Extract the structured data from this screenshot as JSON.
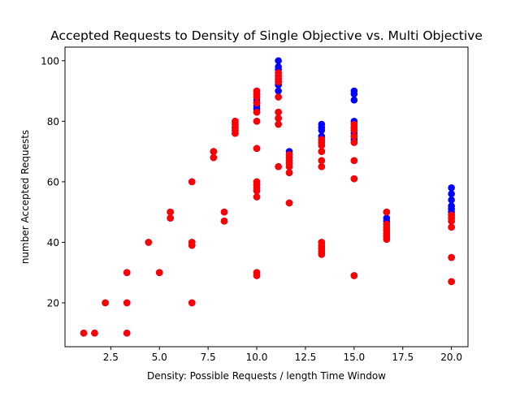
{
  "chart_data": {
    "type": "scatter",
    "title": "Accepted Requests to Density of Single Objective vs. Multi Objective",
    "xlabel": "Density: Possible Requests / length Time Window",
    "ylabel": "number Accepted Requests",
    "xlim": [
      0.15,
      20.85
    ],
    "ylim": [
      5.5,
      104.5
    ],
    "xticks": [
      2.5,
      5.0,
      7.5,
      10.0,
      12.5,
      15.0,
      17.5,
      20.0
    ],
    "xtick_labels": [
      "2.5",
      "5.0",
      "7.5",
      "10.0",
      "12.5",
      "15.0",
      "17.5",
      "20.0"
    ],
    "yticks": [
      20,
      40,
      60,
      80,
      100
    ],
    "ytick_labels": [
      "20",
      "40",
      "60",
      "80",
      "100"
    ],
    "grid": false,
    "legend": "none",
    "series": [
      {
        "color": "#0000ff",
        "points": [
          [
            1.11,
            10
          ],
          [
            1.67,
            10
          ],
          [
            2.22,
            20
          ],
          [
            3.33,
            10
          ],
          [
            3.33,
            20
          ],
          [
            3.33,
            30
          ],
          [
            4.44,
            40
          ],
          [
            5.0,
            30
          ],
          [
            5.56,
            48
          ],
          [
            5.56,
            50
          ],
          [
            6.67,
            20
          ],
          [
            6.67,
            39
          ],
          [
            6.67,
            40
          ],
          [
            6.67,
            60
          ],
          [
            7.78,
            68
          ],
          [
            7.78,
            70
          ],
          [
            8.33,
            47
          ],
          [
            8.33,
            50
          ],
          [
            8.89,
            76
          ],
          [
            8.89,
            77
          ],
          [
            8.89,
            78
          ],
          [
            8.89,
            79
          ],
          [
            8.89,
            80
          ],
          [
            10.0,
            29
          ],
          [
            10.0,
            30
          ],
          [
            10.0,
            55
          ],
          [
            10.0,
            57
          ],
          [
            10.0,
            58
          ],
          [
            10.0,
            59
          ],
          [
            10.0,
            60
          ],
          [
            10.0,
            71
          ],
          [
            10.0,
            80
          ],
          [
            10.0,
            83
          ],
          [
            10.0,
            84
          ],
          [
            10.0,
            85
          ],
          [
            10.0,
            86
          ],
          [
            10.0,
            87
          ],
          [
            10.0,
            88
          ],
          [
            10.0,
            89
          ],
          [
            10.0,
            90
          ],
          [
            11.11,
            65
          ],
          [
            11.11,
            79
          ],
          [
            11.11,
            81
          ],
          [
            11.11,
            83
          ],
          [
            11.11,
            88
          ],
          [
            11.11,
            90
          ],
          [
            11.11,
            92
          ],
          [
            11.11,
            93
          ],
          [
            11.11,
            94
          ],
          [
            11.11,
            95
          ],
          [
            11.11,
            96
          ],
          [
            11.11,
            97
          ],
          [
            11.11,
            98
          ],
          [
            11.11,
            100
          ],
          [
            11.67,
            53
          ],
          [
            11.67,
            63
          ],
          [
            11.67,
            65
          ],
          [
            11.67,
            66
          ],
          [
            11.67,
            67
          ],
          [
            11.67,
            68
          ],
          [
            11.67,
            69
          ],
          [
            11.67,
            70
          ],
          [
            13.33,
            36
          ],
          [
            13.33,
            37
          ],
          [
            13.33,
            38
          ],
          [
            13.33,
            39
          ],
          [
            13.33,
            40
          ],
          [
            13.33,
            65
          ],
          [
            13.33,
            67
          ],
          [
            13.33,
            70
          ],
          [
            13.33,
            72
          ],
          [
            13.33,
            73
          ],
          [
            13.33,
            74
          ],
          [
            13.33,
            75
          ],
          [
            13.33,
            77
          ],
          [
            13.33,
            78
          ],
          [
            13.33,
            79
          ],
          [
            15.0,
            29
          ],
          [
            15.0,
            61
          ],
          [
            15.0,
            67
          ],
          [
            15.0,
            73
          ],
          [
            15.0,
            74
          ],
          [
            15.0,
            75
          ],
          [
            15.0,
            76
          ],
          [
            15.0,
            77
          ],
          [
            15.0,
            78
          ],
          [
            15.0,
            79
          ],
          [
            15.0,
            80
          ],
          [
            15.0,
            87
          ],
          [
            15.0,
            89
          ],
          [
            15.0,
            90
          ],
          [
            16.67,
            41
          ],
          [
            16.67,
            42
          ],
          [
            16.67,
            43
          ],
          [
            16.67,
            44
          ],
          [
            16.67,
            45
          ],
          [
            16.67,
            46
          ],
          [
            16.67,
            47
          ],
          [
            16.67,
            48
          ],
          [
            16.67,
            50
          ],
          [
            20.0,
            27
          ],
          [
            20.0,
            35
          ],
          [
            20.0,
            45
          ],
          [
            20.0,
            47
          ],
          [
            20.0,
            48
          ],
          [
            20.0,
            49
          ],
          [
            20.0,
            50
          ],
          [
            20.0,
            51
          ],
          [
            20.0,
            52
          ],
          [
            20.0,
            54
          ],
          [
            20.0,
            56
          ],
          [
            20.0,
            58
          ]
        ]
      },
      {
        "color": "#ff0000",
        "points": [
          [
            1.11,
            10
          ],
          [
            1.67,
            10
          ],
          [
            2.22,
            20
          ],
          [
            3.33,
            10
          ],
          [
            3.33,
            20
          ],
          [
            3.33,
            30
          ],
          [
            4.44,
            40
          ],
          [
            5.0,
            30
          ],
          [
            5.56,
            48
          ],
          [
            5.56,
            50
          ],
          [
            6.67,
            20
          ],
          [
            6.67,
            39
          ],
          [
            6.67,
            40
          ],
          [
            6.67,
            60
          ],
          [
            7.78,
            68
          ],
          [
            7.78,
            70
          ],
          [
            8.33,
            47
          ],
          [
            8.33,
            50
          ],
          [
            8.89,
            76
          ],
          [
            8.89,
            77
          ],
          [
            8.89,
            78
          ],
          [
            8.89,
            79
          ],
          [
            8.89,
            80
          ],
          [
            10.0,
            29
          ],
          [
            10.0,
            30
          ],
          [
            10.0,
            55
          ],
          [
            10.0,
            57
          ],
          [
            10.0,
            58
          ],
          [
            10.0,
            59
          ],
          [
            10.0,
            60
          ],
          [
            10.0,
            71
          ],
          [
            10.0,
            80
          ],
          [
            10.0,
            83
          ],
          [
            10.0,
            86
          ],
          [
            10.0,
            88
          ],
          [
            10.0,
            89
          ],
          [
            10.0,
            90
          ],
          [
            11.11,
            65
          ],
          [
            11.11,
            79
          ],
          [
            11.11,
            81
          ],
          [
            11.11,
            83
          ],
          [
            11.11,
            88
          ],
          [
            11.11,
            93
          ],
          [
            11.11,
            94
          ],
          [
            11.11,
            95
          ],
          [
            11.11,
            96
          ],
          [
            11.67,
            53
          ],
          [
            11.67,
            63
          ],
          [
            11.67,
            65
          ],
          [
            11.67,
            66
          ],
          [
            11.67,
            67
          ],
          [
            11.67,
            68
          ],
          [
            11.67,
            69
          ],
          [
            13.33,
            36
          ],
          [
            13.33,
            37
          ],
          [
            13.33,
            38
          ],
          [
            13.33,
            39
          ],
          [
            13.33,
            40
          ],
          [
            13.33,
            65
          ],
          [
            13.33,
            67
          ],
          [
            13.33,
            70
          ],
          [
            13.33,
            72
          ],
          [
            13.33,
            73
          ],
          [
            13.33,
            74
          ],
          [
            15.0,
            29
          ],
          [
            15.0,
            61
          ],
          [
            15.0,
            67
          ],
          [
            15.0,
            73
          ],
          [
            15.0,
            75
          ],
          [
            15.0,
            77
          ],
          [
            15.0,
            78
          ],
          [
            15.0,
            79
          ],
          [
            16.67,
            41
          ],
          [
            16.67,
            42
          ],
          [
            16.67,
            43
          ],
          [
            16.67,
            44
          ],
          [
            16.67,
            45
          ],
          [
            16.67,
            46
          ],
          [
            16.67,
            50
          ],
          [
            20.0,
            27
          ],
          [
            20.0,
            35
          ],
          [
            20.0,
            45
          ],
          [
            20.0,
            47
          ],
          [
            20.0,
            48
          ],
          [
            20.0,
            49
          ]
        ]
      }
    ]
  }
}
